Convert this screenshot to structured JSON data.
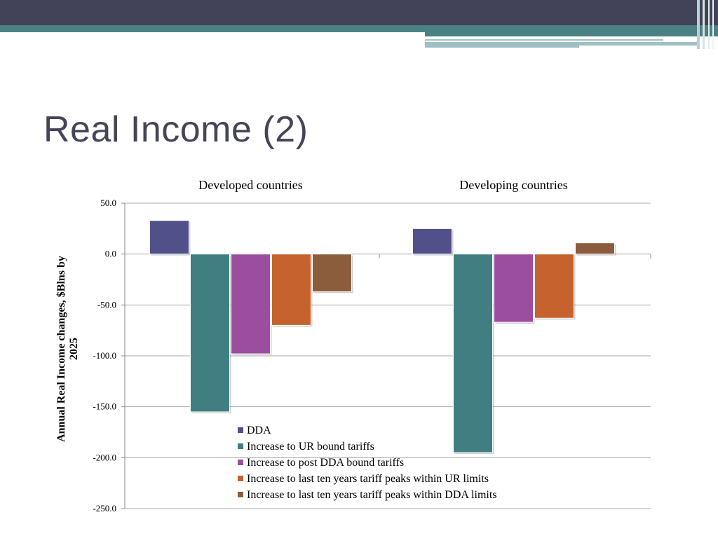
{
  "slide": {
    "title": "Real Income (2)"
  },
  "colors": {
    "header_dark": "#424358",
    "header_teal": "#4c8183",
    "header_light": "#9fc0c3",
    "title": "#454559"
  },
  "chart_data": {
    "type": "bar",
    "categories": [
      "Developed countries",
      "Developing countries"
    ],
    "series": [
      {
        "name": "DDA",
        "color": "#52508a",
        "values": [
          33,
          25
        ]
      },
      {
        "name": "Increase to UR bound tariffs",
        "color": "#417e81",
        "values": [
          -155,
          -195
        ]
      },
      {
        "name": "Increase to post DDA bound tariffs",
        "color": "#9b4ea0",
        "values": [
          -98,
          -67
        ]
      },
      {
        "name": "Increase to last ten years tariff peaks within UR limits",
        "color": "#c6622d",
        "values": [
          -70,
          -63
        ]
      },
      {
        "name": "Increase to last ten years tariff peaks within DDA limits",
        "color": "#8c5d3c",
        "values": [
          -37,
          11
        ]
      }
    ],
    "ylabel_lines": [
      "Annual Real Income changes, $Blns by",
      "2025"
    ],
    "ylim": [
      -250,
      50
    ],
    "yticks": [
      50,
      0,
      -50,
      -100,
      -150,
      -200,
      -250
    ],
    "ytick_labels": [
      "50.0",
      "0.0",
      "-50.0",
      "-100.0",
      "-150.0",
      "-200.0",
      "-250.0"
    ],
    "category_labels_position": "top",
    "grid": true,
    "legend_position": "bottom-center"
  }
}
